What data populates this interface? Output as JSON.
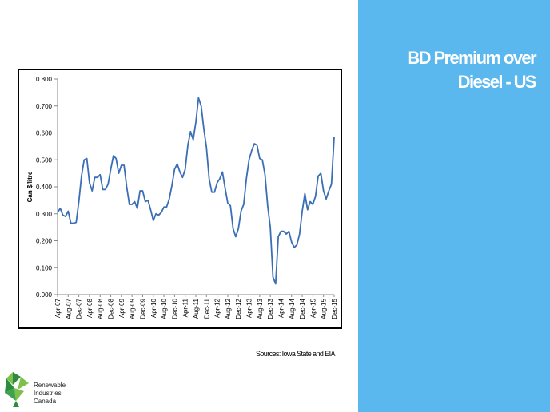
{
  "slide": {
    "title_line1": "BD Premium over",
    "title_line2": "Diesel - US",
    "source": "Sources: Iowa State and EIA"
  },
  "logo": {
    "line1": "Renewable",
    "line2": "Industries",
    "line3": "Canada"
  },
  "colors": {
    "panel": "#5bb8ee",
    "series": "#3a6fb5",
    "logo_green_dark": "#2e8b3e",
    "logo_green_light": "#7cc24a"
  },
  "chart_data": {
    "type": "line",
    "title": "",
    "xlabel": "",
    "ylabel": "Can $/litre",
    "ylim": [
      0,
      0.8
    ],
    "yticks": [
      "0.000",
      "0.100",
      "0.200",
      "0.300",
      "0.400",
      "0.500",
      "0.600",
      "0.700",
      "0.800"
    ],
    "grid": false,
    "legend": "none",
    "x_tick_labels": [
      "Apr-07",
      "Aug-07",
      "Dec-07",
      "Apr-08",
      "Aug-08",
      "Dec-08",
      "Apr-09",
      "Aug-09",
      "Dec-09",
      "Apr-10",
      "Aug-10",
      "Dec-10",
      "Apr-11",
      "Aug-11",
      "Dec-11",
      "Apr-12",
      "Aug-12",
      "Dec-12",
      "Apr-13",
      "Aug-13",
      "Dec-13",
      "Apr-14",
      "Aug-14",
      "Dec-14",
      "Apr-15",
      "Aug-15",
      "Dec-15"
    ],
    "x_start": "Apr-07",
    "x_end": "Dec-15",
    "values": [
      0.305,
      0.32,
      0.295,
      0.29,
      0.31,
      0.265,
      0.265,
      0.268,
      0.345,
      0.44,
      0.5,
      0.505,
      0.415,
      0.385,
      0.435,
      0.435,
      0.445,
      0.39,
      0.39,
      0.41,
      0.465,
      0.515,
      0.505,
      0.45,
      0.48,
      0.48,
      0.4,
      0.335,
      0.335,
      0.345,
      0.32,
      0.385,
      0.385,
      0.345,
      0.35,
      0.315,
      0.275,
      0.3,
      0.295,
      0.305,
      0.325,
      0.325,
      0.355,
      0.405,
      0.465,
      0.485,
      0.455,
      0.435,
      0.465,
      0.555,
      0.605,
      0.575,
      0.64,
      0.73,
      0.7,
      0.615,
      0.545,
      0.43,
      0.38,
      0.38,
      0.415,
      0.43,
      0.455,
      0.395,
      0.34,
      0.33,
      0.245,
      0.215,
      0.245,
      0.31,
      0.335,
      0.43,
      0.5,
      0.535,
      0.56,
      0.555,
      0.505,
      0.5,
      0.445,
      0.33,
      0.25,
      0.065,
      0.04,
      0.215,
      0.235,
      0.235,
      0.225,
      0.235,
      0.195,
      0.175,
      0.185,
      0.225,
      0.31,
      0.375,
      0.315,
      0.345,
      0.335,
      0.365,
      0.44,
      0.45,
      0.385,
      0.355,
      0.385,
      0.41,
      0.585
    ]
  }
}
